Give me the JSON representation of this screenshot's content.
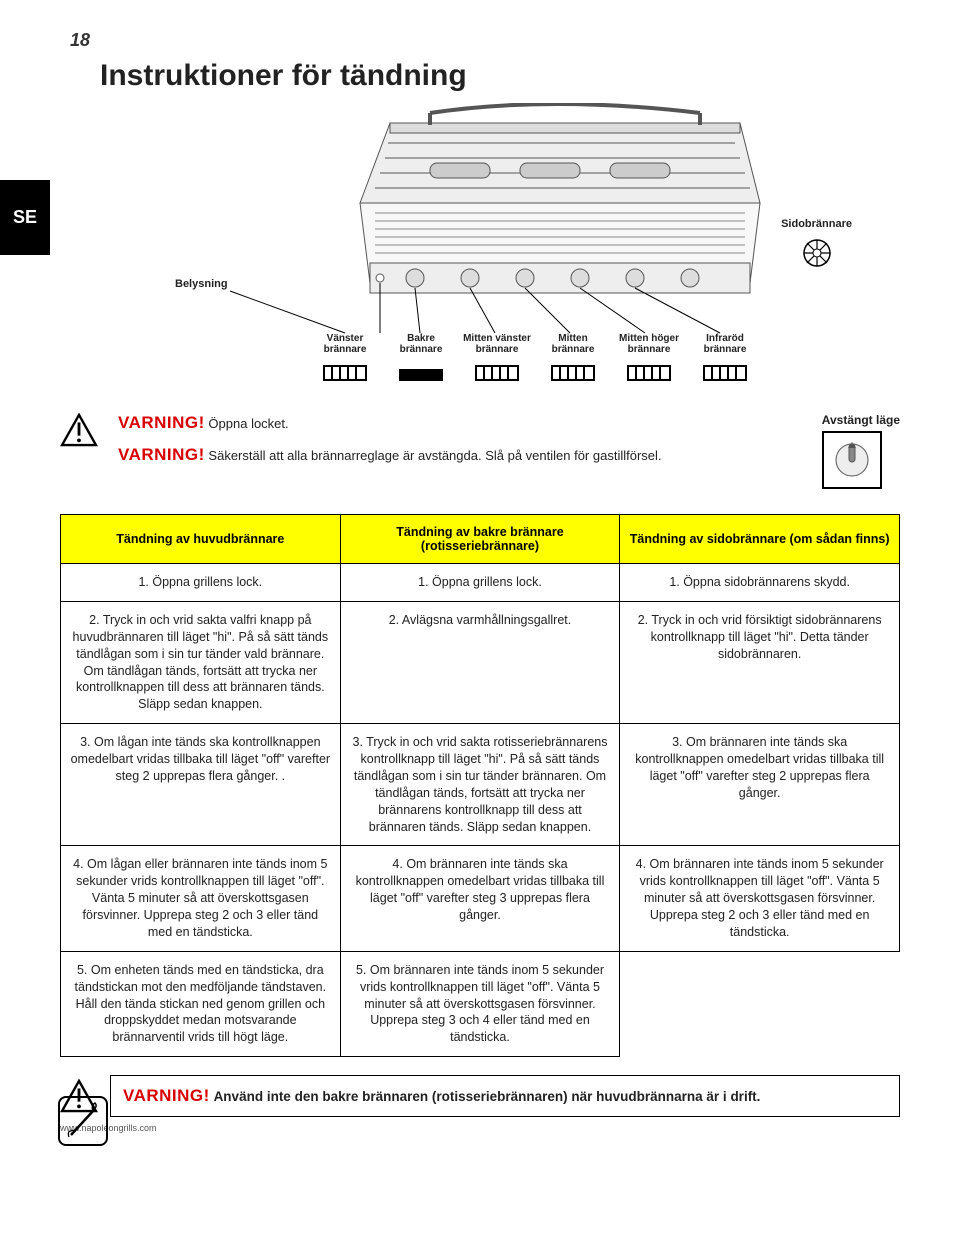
{
  "page_number": "18",
  "title": "Instruktioner för tändning",
  "lang_code": "SE",
  "labels": {
    "belysning": "Belysning",
    "sidobrannare": "Sidobrännare",
    "avstangt": "Avstängt läge"
  },
  "burners": [
    {
      "name": "Vänster brännare",
      "style": "box5"
    },
    {
      "name": "Bakre brännare",
      "style": "solid"
    },
    {
      "name": "Mitten vänster brännare",
      "style": "box5"
    },
    {
      "name": "Mitten brännare",
      "style": "box5"
    },
    {
      "name": "Mitten höger brännare",
      "style": "box5"
    },
    {
      "name": "Infraröd brännare",
      "style": "box5"
    }
  ],
  "warnings": {
    "w1_title": "VARNING!",
    "w1_text": "Öppna locket.",
    "w2_title": "VARNING!",
    "w2_text": "Säkerställ att alla brännarreglage är avstängda. Slå på ventilen för gastillförsel.",
    "bottom_title": "VARNING!",
    "bottom_text": "Använd inte den bakre brännaren (rotisseriebrännaren) när huvudbrännarna är i drift."
  },
  "table": {
    "headers": [
      "Tändning av huvudbrännare",
      "Tändning av bakre brännare (rotisseriebrännare)",
      "Tändning av sidobrännare (om sådan finns)"
    ],
    "rows": [
      [
        "1. Öppna grillens lock.",
        "1. Öppna grillens lock.",
        "1. Öppna sidobrännarens skydd."
      ],
      [
        "2. Tryck in och vrid sakta valfri knapp på huvudbrännaren till läget \"hi\".  På så sätt tänds tändlågan som i sin tur tänder vald brännare. Om tändlågan tänds, fortsätt att trycka ner kontrollknappen till dess att brännaren tänds. Släpp sedan knappen.",
        "2. Avlägsna varmhållningsgallret.",
        "2. Tryck in och vrid försiktigt sidobrännarens kontrollknapp till läget \"hi\". Detta tänder sidobrännaren."
      ],
      [
        "3. Om lågan inte tänds ska kontrollknappen omedelbart vridas tillbaka till läget \"off\" varefter steg 2 upprepas flera gånger.\n.",
        "3. Tryck in och vrid sakta rotisseriebrännarens kontrollknapp till läget \"hi\".  På så sätt tänds tändlågan som i sin tur tänder brännaren.  Om tändlågan tänds, fortsätt att trycka ner brännarens kontrollknapp till dess att brännaren tänds. Släpp sedan knappen.",
        "3.  Om brännaren inte tänds ska kontrollknappen omedelbart vridas tillbaka till läget \"off\" varefter steg 2 upprepas flera gånger."
      ],
      [
        "4. Om lågan eller brännaren inte tänds inom 5 sekunder vrids kontrollknappen till läget \"off\". Vänta 5 minuter så att överskottsgasen försvinner.  Upprepa steg 2 och 3 eller tänd med en tändsticka.",
        "4. Om brännaren inte tänds ska kontrollknappen omedelbart vridas tillbaka till läget \"off\" varefter steg 3 upprepas flera gånger.",
        "4.  Om brännaren inte tänds inom 5 sekunder vrids kontrollknappen till läget \"off\". Vänta 5 minuter så att överskottsgasen försvinner. Upprepa steg 2 och 3 eller tänd med en tändsticka."
      ],
      [
        "5. Om enheten tänds med en tändsticka, dra tändstickan mot den medföljande tändstaven.  Håll den tända stickan ned genom grillen och droppskyddet medan motsvarande brännarventil vrids till högt läge.",
        "5. Om brännaren inte tänds inom 5 sekunder vrids kontrollknappen till läget \"off\". Vänta 5 minuter så att överskottsgasen försvinner.  Upprepa steg 3 och 4 eller tänd med en tändsticka.",
        ""
      ]
    ]
  },
  "footer": "www.napoleongrills.com",
  "colors": {
    "warn_red": "#d90000",
    "header_bg": "#ffff00",
    "text": "#222222",
    "border": "#000000"
  }
}
